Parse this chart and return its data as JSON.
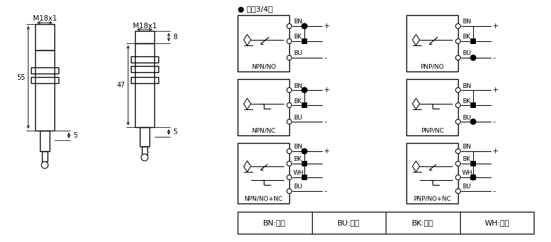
{
  "bg_color": "#ffffff",
  "title_bullet": "● 直涁3/4线",
  "color_table": [
    "BN:棕色",
    "BU:兰色",
    "BK:黑色",
    "WH:白色"
  ],
  "dim_left_label": "M18x1",
  "dim_right_label": "M18x1",
  "dim_55": "55",
  "dim_47": "47",
  "dim_8": "8",
  "dim_5a": "5",
  "dim_5b": "5"
}
